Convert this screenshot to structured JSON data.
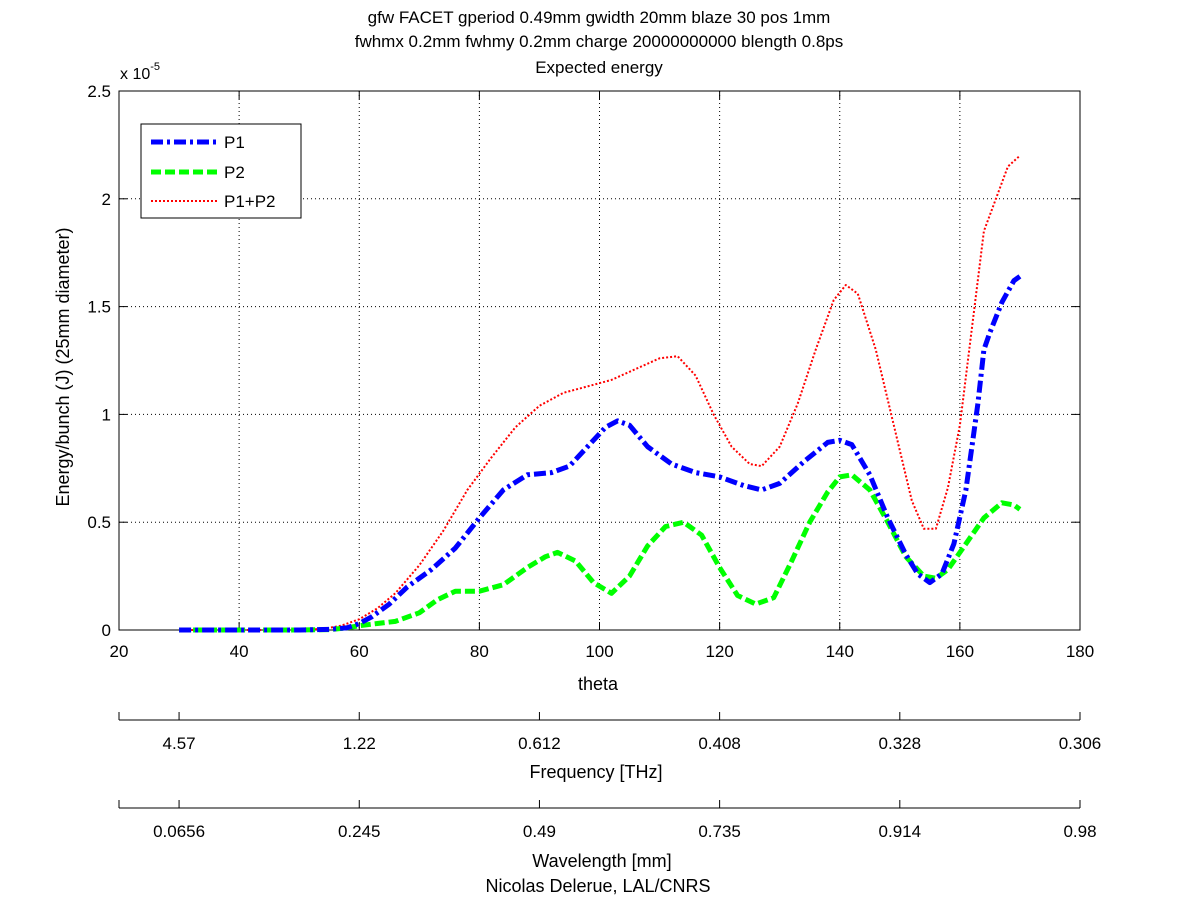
{
  "title_lines": [
    "gfw FACET gperiod 0.49mm gwidth 20mm blaze 30 pos 1mm",
    "fwhmx 0.2mm fwhmy 0.2mm charge 20000000000 blength 0.8ps",
    "Expected energy"
  ],
  "footer": "Nicolas Delerue, LAL/CNRS",
  "chart_data": {
    "type": "line",
    "title": "gfw FACET gperiod 0.49mm gwidth 20mm blaze 30 pos 1mm fwhmx 0.2mm fwhmy 0.2mm charge 20000000000 blength 0.8ps Expected energy",
    "xlabel": "theta",
    "ylabel": "Energy/bunch (J)  (25mm diameter)",
    "y_exponent_label": "x 10",
    "y_exponent_power": "-5",
    "xlim": [
      20,
      180
    ],
    "ylim": [
      0,
      2.5
    ],
    "y_scale_multiplier": 1e-05,
    "grid": true,
    "legend_position": "top-left",
    "x_ticks": [
      "20",
      "40",
      "60",
      "80",
      "100",
      "120",
      "140",
      "160",
      "180"
    ],
    "y_ticks": [
      "0",
      "0.5",
      "1",
      "1.5",
      "2",
      "2.5"
    ],
    "series": [
      {
        "name": "P1",
        "color": "#0000ff",
        "style": "dash-dot",
        "points": [
          [
            30,
            0
          ],
          [
            40,
            0
          ],
          [
            50,
            0
          ],
          [
            55,
            0.003
          ],
          [
            58,
            0.01
          ],
          [
            60,
            0.03
          ],
          [
            62,
            0.06
          ],
          [
            65,
            0.12
          ],
          [
            68,
            0.2
          ],
          [
            72,
            0.28
          ],
          [
            76,
            0.38
          ],
          [
            80,
            0.52
          ],
          [
            84,
            0.65
          ],
          [
            88,
            0.72
          ],
          [
            92,
            0.73
          ],
          [
            95,
            0.76
          ],
          [
            98,
            0.85
          ],
          [
            101,
            0.94
          ],
          [
            103,
            0.97
          ],
          [
            105,
            0.95
          ],
          [
            108,
            0.85
          ],
          [
            112,
            0.77
          ],
          [
            116,
            0.73
          ],
          [
            120,
            0.71
          ],
          [
            124,
            0.67
          ],
          [
            127,
            0.65
          ],
          [
            130,
            0.68
          ],
          [
            134,
            0.78
          ],
          [
            138,
            0.87
          ],
          [
            140,
            0.88
          ],
          [
            142,
            0.86
          ],
          [
            145,
            0.72
          ],
          [
            148,
            0.52
          ],
          [
            151,
            0.35
          ],
          [
            153,
            0.26
          ],
          [
            155,
            0.22
          ],
          [
            157,
            0.26
          ],
          [
            159,
            0.4
          ],
          [
            161,
            0.65
          ],
          [
            163,
            1.05
          ],
          [
            164,
            1.3
          ],
          [
            165,
            1.38
          ],
          [
            167,
            1.52
          ],
          [
            169,
            1.62
          ],
          [
            170,
            1.64
          ]
        ]
      },
      {
        "name": "P2",
        "color": "#00ff00",
        "style": "dashed",
        "points": [
          [
            30,
            0
          ],
          [
            40,
            0
          ],
          [
            50,
            0
          ],
          [
            55,
            0.002
          ],
          [
            58,
            0.01
          ],
          [
            60,
            0.02
          ],
          [
            63,
            0.03
          ],
          [
            66,
            0.04
          ],
          [
            70,
            0.08
          ],
          [
            73,
            0.14
          ],
          [
            76,
            0.18
          ],
          [
            80,
            0.18
          ],
          [
            84,
            0.21
          ],
          [
            88,
            0.29
          ],
          [
            91,
            0.34
          ],
          [
            93,
            0.36
          ],
          [
            96,
            0.32
          ],
          [
            99,
            0.22
          ],
          [
            102,
            0.17
          ],
          [
            105,
            0.25
          ],
          [
            108,
            0.39
          ],
          [
            111,
            0.48
          ],
          [
            114,
            0.5
          ],
          [
            117,
            0.44
          ],
          [
            120,
            0.29
          ],
          [
            123,
            0.16
          ],
          [
            126,
            0.12
          ],
          [
            129,
            0.15
          ],
          [
            132,
            0.32
          ],
          [
            135,
            0.5
          ],
          [
            138,
            0.64
          ],
          [
            140,
            0.71
          ],
          [
            142,
            0.72
          ],
          [
            145,
            0.65
          ],
          [
            148,
            0.5
          ],
          [
            151,
            0.34
          ],
          [
            154,
            0.25
          ],
          [
            156,
            0.24
          ],
          [
            158,
            0.28
          ],
          [
            161,
            0.4
          ],
          [
            164,
            0.52
          ],
          [
            167,
            0.59
          ],
          [
            169,
            0.58
          ],
          [
            170,
            0.56
          ]
        ]
      },
      {
        "name": "P1+P2",
        "color": "#ff0000",
        "style": "dotted",
        "points": [
          [
            30,
            0
          ],
          [
            40,
            0
          ],
          [
            50,
            0
          ],
          [
            54,
            0.005
          ],
          [
            57,
            0.02
          ],
          [
            60,
            0.05
          ],
          [
            63,
            0.1
          ],
          [
            66,
            0.17
          ],
          [
            70,
            0.3
          ],
          [
            74,
            0.46
          ],
          [
            78,
            0.65
          ],
          [
            82,
            0.8
          ],
          [
            86,
            0.94
          ],
          [
            90,
            1.04
          ],
          [
            94,
            1.1
          ],
          [
            98,
            1.13
          ],
          [
            102,
            1.16
          ],
          [
            106,
            1.21
          ],
          [
            110,
            1.26
          ],
          [
            113,
            1.27
          ],
          [
            116,
            1.18
          ],
          [
            119,
            1.0
          ],
          [
            122,
            0.85
          ],
          [
            125,
            0.77
          ],
          [
            127,
            0.76
          ],
          [
            130,
            0.85
          ],
          [
            133,
            1.05
          ],
          [
            136,
            1.3
          ],
          [
            139,
            1.53
          ],
          [
            141,
            1.6
          ],
          [
            143,
            1.56
          ],
          [
            146,
            1.3
          ],
          [
            149,
            0.95
          ],
          [
            152,
            0.6
          ],
          [
            154,
            0.47
          ],
          [
            156,
            0.47
          ],
          [
            158,
            0.66
          ],
          [
            160,
            0.95
          ],
          [
            162,
            1.4
          ],
          [
            164,
            1.85
          ],
          [
            166,
            2.0
          ],
          [
            168,
            2.15
          ],
          [
            170,
            2.2
          ]
        ]
      }
    ],
    "secondary_axes": [
      {
        "label": "Frequency [THz]",
        "tick_labels": [
          "4.57",
          "1.22",
          "0.612",
          "0.408",
          "0.328",
          "0.306"
        ]
      },
      {
        "label": "Wavelength [mm]",
        "tick_labels": [
          "0.0656",
          "0.245",
          "0.49",
          "0.735",
          "0.914",
          "0.98"
        ]
      }
    ]
  }
}
